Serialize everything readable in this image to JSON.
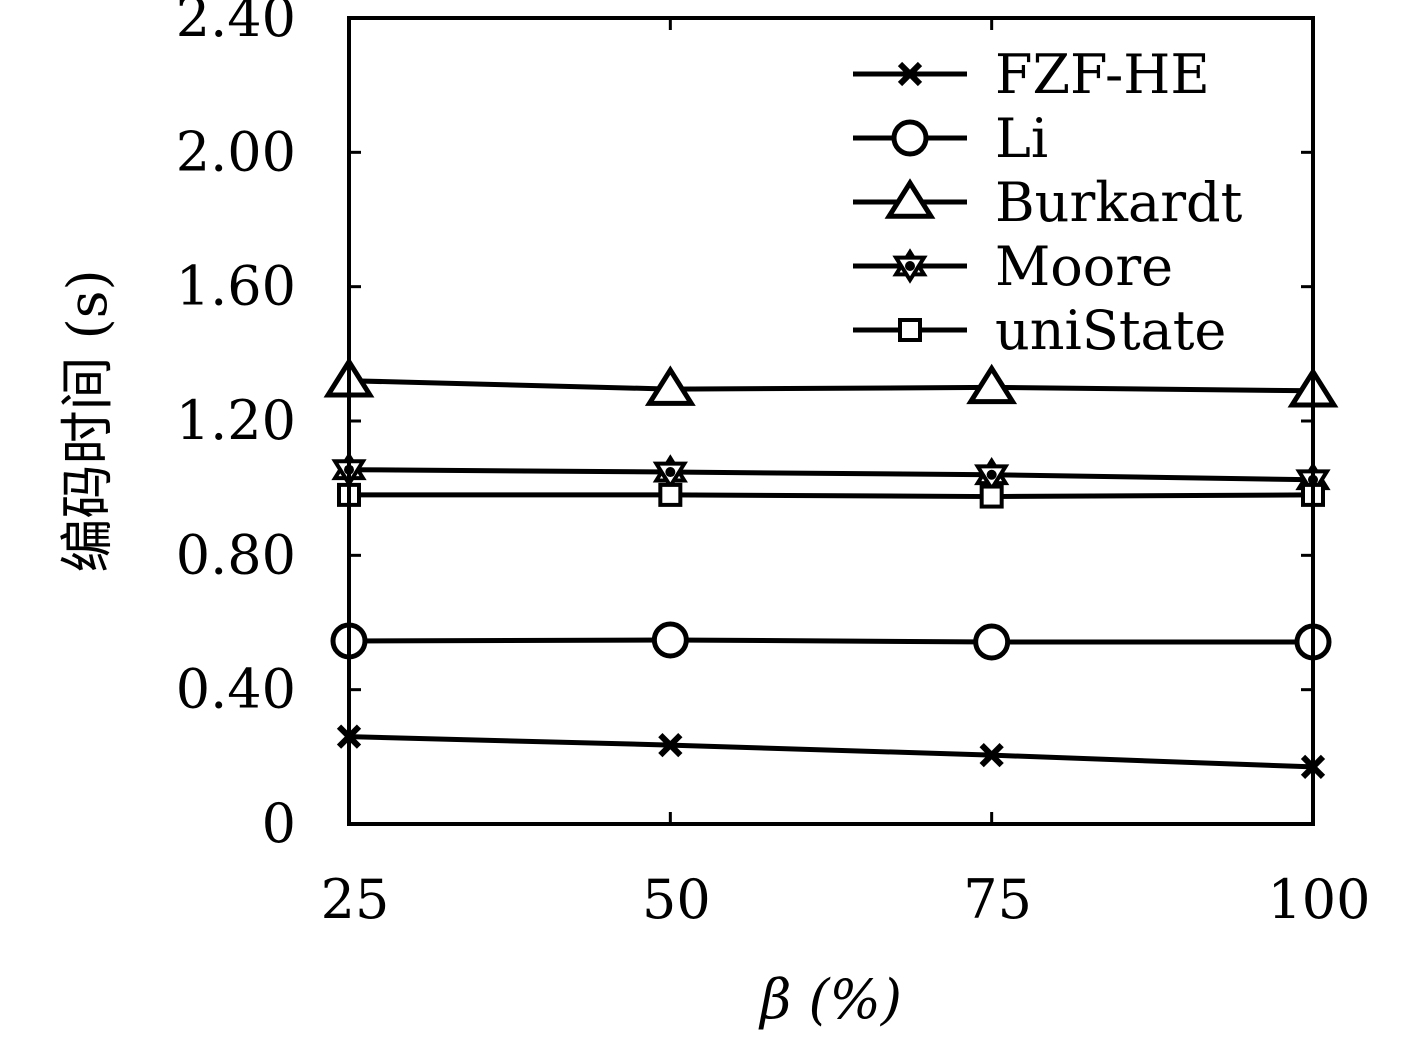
{
  "chart_data": {
    "type": "line",
    "xlabel": "β (%)",
    "ylabel": "编码时间 (s)",
    "x": [
      25,
      50,
      75,
      100
    ],
    "xticks": [
      "25",
      "50",
      "75",
      "100"
    ],
    "yticks": [
      "0",
      "0.40",
      "0.80",
      "1.20",
      "1.60",
      "2.00",
      "2.40"
    ],
    "ylim": [
      0,
      2.4
    ],
    "grid": false,
    "legend_position": "top-right",
    "colors": {
      "line": "#000000",
      "background": "#ffffff"
    },
    "series": [
      {
        "name": "FZF-HE",
        "marker": "x-marker",
        "values": [
          0.26,
          0.235,
          0.205,
          0.17
        ]
      },
      {
        "name": "Li",
        "marker": "circle-marker",
        "values": [
          0.545,
          0.548,
          0.542,
          0.542
        ]
      },
      {
        "name": "Burkardt",
        "marker": "triangle-marker",
        "values": [
          1.32,
          1.295,
          1.3,
          1.29
        ]
      },
      {
        "name": "Moore",
        "marker": "star-marker",
        "values": [
          1.055,
          1.048,
          1.04,
          1.025
        ]
      },
      {
        "name": "uniState",
        "marker": "square-marker",
        "values": [
          0.98,
          0.98,
          0.975,
          0.98
        ]
      }
    ]
  }
}
